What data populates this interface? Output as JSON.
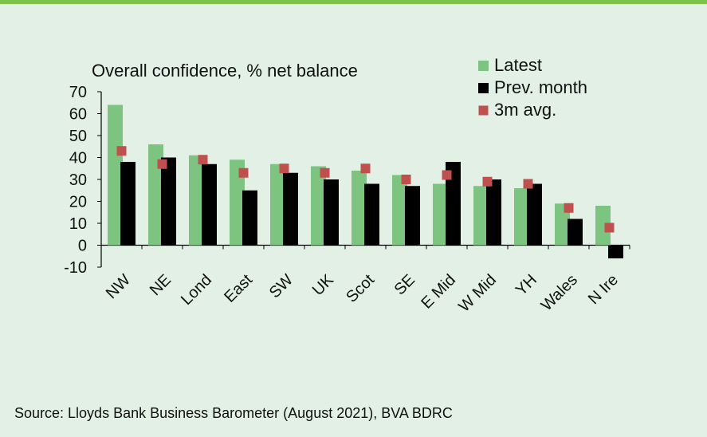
{
  "chart_data": {
    "type": "bar",
    "title": "Overall confidence, % net balance",
    "categories": [
      "NW",
      "NE",
      "Lond",
      "East",
      "SW",
      "UK",
      "Scot",
      "SE",
      "E Mid",
      "W Mid",
      "YH",
      "Wales",
      "N Ire"
    ],
    "series": [
      {
        "name": "Latest",
        "type": "bar",
        "color": "#7cc47f",
        "values": [
          64,
          46,
          41,
          39,
          37,
          36,
          34,
          32,
          28,
          27,
          26,
          19,
          18
        ]
      },
      {
        "name": "Prev. month",
        "type": "bar",
        "color": "#000000",
        "values": [
          38,
          40,
          37,
          25,
          33,
          30,
          28,
          27,
          38,
          30,
          28,
          12,
          -6
        ]
      },
      {
        "name": "3m avg.",
        "type": "marker",
        "color": "#c0504d",
        "values": [
          43,
          37,
          39,
          33,
          35,
          33,
          35,
          30,
          32,
          29,
          28,
          17,
          8
        ]
      }
    ],
    "ylim": [
      -10,
      70
    ],
    "yticks": [
      70,
      60,
      50,
      40,
      30,
      20,
      10,
      0,
      -10
    ],
    "legend": "top-right",
    "grid": false
  },
  "source": "Source: Lloyds Bank Business Barometer (August 2021), BVA BDRC"
}
